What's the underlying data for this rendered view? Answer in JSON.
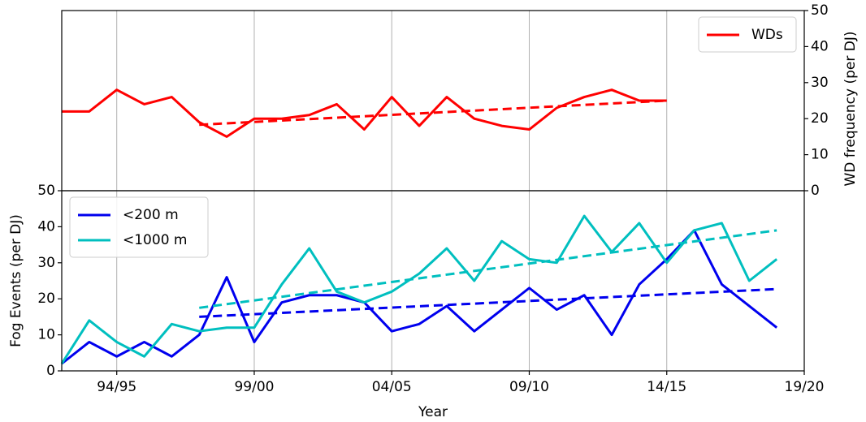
{
  "chart_data": [
    {
      "type": "line",
      "y2label": "WD frequency (per DJ)",
      "xlim": [
        1992,
        2019
      ],
      "xticks": [
        {
          "value": 1994,
          "label": "94/95"
        },
        {
          "value": 1999,
          "label": "99/00"
        },
        {
          "value": 2004,
          "label": "04/05"
        },
        {
          "value": 2009,
          "label": "09/10"
        },
        {
          "value": 2014,
          "label": "14/15"
        },
        {
          "value": 2019,
          "label": "19/20"
        }
      ],
      "show_xtick_labels": false,
      "y2lim": [
        0,
        50
      ],
      "y2ticks": [
        0,
        10,
        20,
        30,
        40,
        50
      ],
      "grid": "x",
      "legend": "upper-right",
      "x": [
        1992,
        1993,
        1994,
        1995,
        1996,
        1997,
        1998,
        1999,
        2000,
        2001,
        2002,
        2003,
        2004,
        2005,
        2006,
        2007,
        2008,
        2009,
        2010,
        2011,
        2012,
        2013,
        2014
      ],
      "series": [
        {
          "name": "WDs",
          "color": "#ff0000",
          "axis": "y2",
          "values": [
            22,
            22,
            28,
            24,
            26,
            19,
            15,
            20,
            20,
            21,
            24,
            17,
            26,
            18,
            26,
            20,
            18,
            17,
            23,
            26,
            28,
            25,
            25
          ],
          "trend": {
            "x": [
              1997,
              2014
            ],
            "values": [
              18.3,
              25
            ]
          }
        }
      ]
    },
    {
      "type": "line",
      "ylabel": "Fog Events (per DJ)",
      "xlabel": "Year",
      "xlim": [
        1992,
        2019
      ],
      "xticks": [
        {
          "value": 1994,
          "label": "94/95"
        },
        {
          "value": 1999,
          "label": "99/00"
        },
        {
          "value": 2004,
          "label": "04/05"
        },
        {
          "value": 2009,
          "label": "09/10"
        },
        {
          "value": 2014,
          "label": "14/15"
        },
        {
          "value": 2019,
          "label": "19/20"
        }
      ],
      "show_xtick_labels": true,
      "ylim": [
        0,
        50
      ],
      "yticks": [
        0,
        10,
        20,
        30,
        40,
        50
      ],
      "grid": "x",
      "legend": "upper-left",
      "x": [
        1992,
        1993,
        1994,
        1995,
        1996,
        1997,
        1998,
        1999,
        2000,
        2001,
        2002,
        2003,
        2004,
        2005,
        2006,
        2007,
        2008,
        2009,
        2010,
        2011,
        2012,
        2013,
        2014,
        2015,
        2016,
        2017,
        2018
      ],
      "series": [
        {
          "name": "<200 m",
          "color": "#0000ee",
          "values": [
            2,
            8,
            4,
            8,
            4,
            10,
            26,
            8,
            19,
            21,
            21,
            19,
            11,
            13,
            18,
            11,
            17,
            23,
            17,
            21,
            10,
            24,
            31,
            39,
            24,
            18,
            12
          ],
          "trend": {
            "x": [
              1997,
              2018
            ],
            "values": [
              15,
              22.7
            ]
          }
        },
        {
          "name": "<1000 m",
          "color": "#00bfbf",
          "values": [
            2,
            14,
            8,
            4,
            13,
            11,
            12,
            12,
            24,
            34,
            22,
            19,
            22,
            27,
            34,
            25,
            36,
            31,
            30,
            43,
            33,
            41,
            30,
            39,
            41,
            25,
            31
          ],
          "trend": {
            "x": [
              1997,
              2018
            ],
            "values": [
              17.5,
              39
            ]
          }
        }
      ]
    }
  ]
}
